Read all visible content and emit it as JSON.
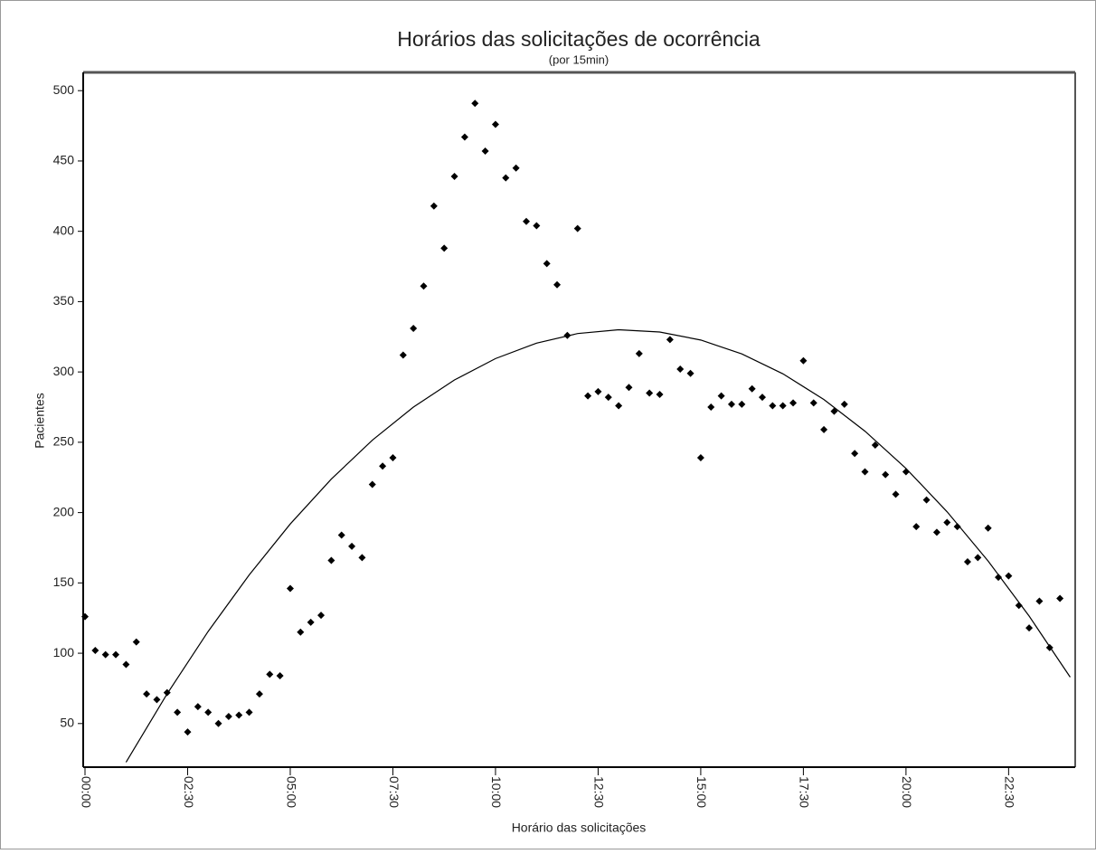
{
  "chart_data": {
    "type": "scatter",
    "title": "Horários das solicitações de ocorrência",
    "subtitle": "(por 15min)",
    "x_label": "Horário das solicitações",
    "y_label": "Pacientes",
    "color": "#000000",
    "x": [
      0,
      0.25,
      0.5,
      0.75,
      1,
      1.25,
      1.5,
      1.75,
      2,
      2.25,
      2.5,
      2.75,
      3,
      3.25,
      3.5,
      3.75,
      4,
      4.25,
      4.5,
      4.75,
      5,
      5.25,
      5.5,
      5.75,
      6,
      6.25,
      6.5,
      6.75,
      7,
      7.25,
      7.5,
      7.75,
      8,
      8.25,
      8.5,
      8.75,
      9,
      9.25,
      9.5,
      9.75,
      10,
      10.25,
      10.5,
      10.75,
      11,
      11.25,
      11.5,
      11.75,
      12,
      12.25,
      12.5,
      12.75,
      13,
      13.25,
      13.5,
      13.75,
      14,
      14.25,
      14.5,
      14.75,
      15,
      15.25,
      15.5,
      15.75,
      16,
      16.25,
      16.5,
      16.75,
      17,
      17.25,
      17.5,
      17.75,
      18,
      18.25,
      18.5,
      18.75,
      19,
      19.25,
      19.5,
      19.75,
      20,
      20.25,
      20.5,
      20.75,
      21,
      21.25,
      21.5,
      21.75,
      22,
      22.25,
      22.5,
      22.75,
      23,
      23.25,
      23.5,
      23.75
    ],
    "values": [
      126,
      102,
      99,
      99,
      92,
      108,
      71,
      67,
      72,
      58,
      44,
      62,
      58,
      50,
      55,
      56,
      58,
      71,
      85,
      84,
      146,
      115,
      122,
      127,
      166,
      184,
      176,
      168,
      220,
      233,
      239,
      312,
      331,
      361,
      418,
      388,
      439,
      467,
      491,
      457,
      476,
      438,
      445,
      407,
      404,
      377,
      362,
      326,
      402,
      283,
      286,
      282,
      276,
      289,
      313,
      285,
      284,
      323,
      302,
      299,
      239,
      275,
      283,
      277,
      277,
      288,
      282,
      276,
      276,
      278,
      308,
      278,
      259,
      272,
      277,
      242,
      229,
      248,
      227,
      213,
      229,
      190,
      209,
      186,
      193,
      190,
      165,
      168,
      189,
      154,
      155,
      134,
      118,
      137,
      104,
      139
    ],
    "trend": {
      "color": "#000000",
      "x": [
        1,
        2,
        3,
        4,
        5,
        6,
        7,
        8,
        9,
        10,
        11,
        12,
        13,
        14,
        15,
        16,
        17,
        18,
        19,
        20,
        21,
        22,
        23,
        24
      ],
      "values": [
        22.5,
        71.1,
        115.5,
        155.7,
        191.9,
        223.8,
        251.5,
        275.0,
        294.3,
        309.5,
        320.5,
        327.3,
        330.0,
        328.4,
        322.7,
        312.8,
        298.7,
        280.4,
        257.9,
        231.4,
        200.6,
        165.6,
        126.4,
        83.0
      ]
    },
    "xlim": [
      0,
      24.1
    ],
    "ylim": [
      19,
      513
    ],
    "xticks": [
      {
        "value": 0,
        "label": "00:00"
      },
      {
        "value": 2.5,
        "label": "02:30"
      },
      {
        "value": 5,
        "label": "05:00"
      },
      {
        "value": 7.5,
        "label": "07:30"
      },
      {
        "value": 10,
        "label": "10:00"
      },
      {
        "value": 12.5,
        "label": "12:30"
      },
      {
        "value": 15,
        "label": "15:00"
      },
      {
        "value": 17.5,
        "label": "17:30"
      },
      {
        "value": 20,
        "label": "20:00"
      },
      {
        "value": 22.5,
        "label": "22:30"
      }
    ],
    "yticks": [
      50,
      100,
      150,
      200,
      250,
      300,
      350,
      400,
      450,
      500
    ],
    "grid": false
  }
}
